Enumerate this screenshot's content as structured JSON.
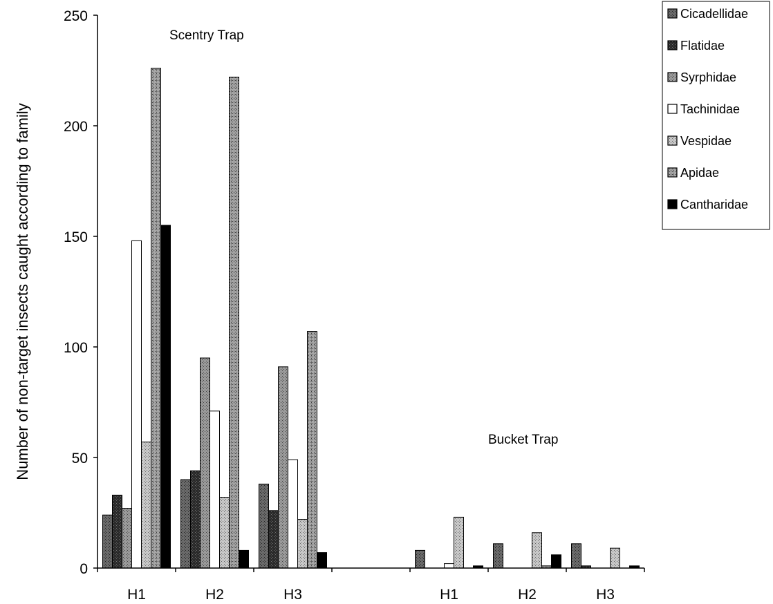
{
  "chart_data": {
    "type": "bar",
    "title": "",
    "xlabel": "",
    "ylabel": "Number of non-target insects caught according to family",
    "ylim": [
      0,
      250
    ],
    "yticks": [
      0,
      50,
      100,
      150,
      200,
      250
    ],
    "categories": [
      "H1",
      "H2",
      "H3",
      "",
      "H1",
      "H2",
      "H3"
    ],
    "annotations": [
      "Scentry Trap",
      "Bucket Trap"
    ],
    "legend_position": "top-right",
    "series": [
      {
        "name": "Cicadellidae",
        "color": "#585858",
        "pattern": "dense-gray",
        "values": [
          24,
          40,
          38,
          null,
          8,
          11,
          11
        ]
      },
      {
        "name": "Flatidae",
        "color": "#333333",
        "pattern": "dark",
        "values": [
          33,
          44,
          26,
          null,
          0,
          0,
          1
        ]
      },
      {
        "name": "Syrphidae",
        "color": "#8c8c8c",
        "pattern": "gray",
        "values": [
          27,
          95,
          91,
          null,
          0,
          0,
          0
        ]
      },
      {
        "name": "Tachinidae",
        "color": "#ffffff",
        "pattern": "white",
        "values": [
          148,
          71,
          49,
          null,
          2,
          0,
          0
        ]
      },
      {
        "name": "Vespidae",
        "color": "#b8b8b8",
        "pattern": "light-gray",
        "values": [
          57,
          32,
          22,
          null,
          23,
          16,
          9
        ]
      },
      {
        "name": "Apidae",
        "color": "#909090",
        "pattern": "mid-gray",
        "values": [
          226,
          222,
          107,
          null,
          0,
          1,
          0
        ]
      },
      {
        "name": "Cantharidae",
        "color": "#000000",
        "pattern": "black",
        "values": [
          155,
          8,
          7,
          null,
          1,
          6,
          1
        ]
      }
    ]
  }
}
